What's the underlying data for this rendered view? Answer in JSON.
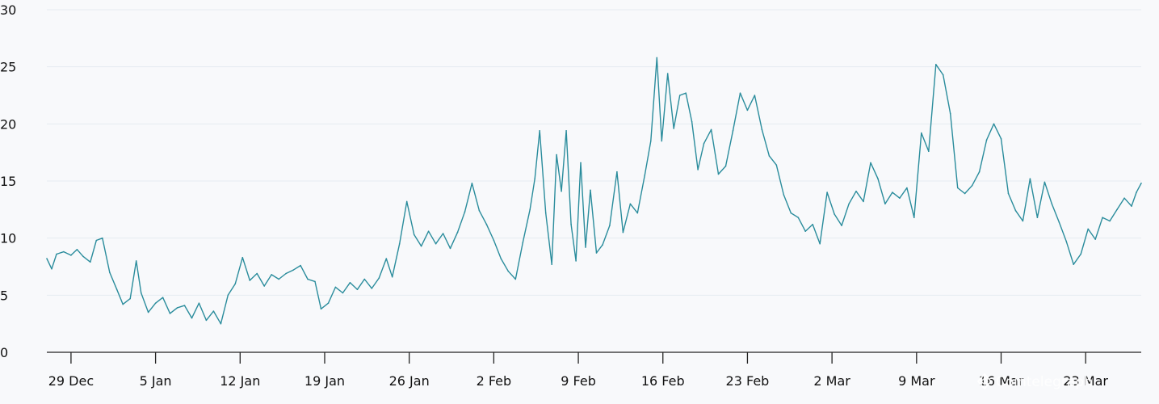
{
  "chart_data": {
    "type": "line",
    "ylim": [
      0,
      30
    ],
    "yticks": [
      "0",
      "5",
      "10",
      "15",
      "20",
      "25",
      "30"
    ],
    "ytick_values": [
      0,
      5,
      10,
      15,
      20,
      25,
      30
    ],
    "x_tick_labels": [
      "29 Dec",
      "5 Jan",
      "12 Jan",
      "19 Jan",
      "26 Jan",
      "2 Feb",
      "9 Feb",
      "16 Feb",
      "23 Feb",
      "2 Mar",
      "9 Mar",
      "16 Mar",
      "23 Mar"
    ],
    "x_tick_days": [
      0,
      7,
      14,
      21,
      28,
      35,
      42,
      49,
      56,
      63,
      70,
      77,
      84
    ],
    "x_range_days": [
      -2,
      88.6
    ],
    "grid": true,
    "line_color": "#2a8c9c",
    "watermark": "Cointelegraph",
    "series": [
      {
        "values": [
          [
            -2.0,
            8.2
          ],
          [
            -1.6,
            7.3
          ],
          [
            -1.2,
            8.6
          ],
          [
            -0.6,
            8.8
          ],
          [
            0.0,
            8.5
          ],
          [
            0.5,
            9.0
          ],
          [
            1.0,
            8.4
          ],
          [
            1.6,
            7.9
          ],
          [
            2.1,
            9.8
          ],
          [
            2.6,
            10.0
          ],
          [
            3.2,
            7.0
          ],
          [
            3.8,
            5.5
          ],
          [
            4.3,
            4.2
          ],
          [
            4.9,
            4.7
          ],
          [
            5.4,
            8.0
          ],
          [
            5.8,
            5.2
          ],
          [
            6.4,
            3.5
          ],
          [
            7.0,
            4.3
          ],
          [
            7.6,
            4.8
          ],
          [
            8.2,
            3.4
          ],
          [
            8.8,
            3.9
          ],
          [
            9.4,
            4.1
          ],
          [
            10.0,
            3.0
          ],
          [
            10.6,
            4.3
          ],
          [
            11.2,
            2.8
          ],
          [
            11.8,
            3.6
          ],
          [
            12.4,
            2.5
          ],
          [
            13.0,
            5.0
          ],
          [
            13.6,
            6.0
          ],
          [
            14.2,
            8.3
          ],
          [
            14.8,
            6.3
          ],
          [
            15.4,
            6.9
          ],
          [
            16.0,
            5.8
          ],
          [
            16.6,
            6.8
          ],
          [
            17.2,
            6.4
          ],
          [
            17.8,
            6.9
          ],
          [
            18.4,
            7.2
          ],
          [
            19.0,
            7.6
          ],
          [
            19.6,
            6.4
          ],
          [
            20.2,
            6.2
          ],
          [
            20.7,
            3.8
          ],
          [
            21.3,
            4.3
          ],
          [
            21.9,
            5.7
          ],
          [
            22.5,
            5.2
          ],
          [
            23.1,
            6.1
          ],
          [
            23.7,
            5.5
          ],
          [
            24.3,
            6.4
          ],
          [
            24.9,
            5.6
          ],
          [
            25.5,
            6.5
          ],
          [
            26.1,
            8.2
          ],
          [
            26.6,
            6.6
          ],
          [
            27.2,
            9.5
          ],
          [
            27.8,
            13.2
          ],
          [
            28.4,
            10.3
          ],
          [
            29.0,
            9.3
          ],
          [
            29.6,
            10.6
          ],
          [
            30.2,
            9.5
          ],
          [
            30.8,
            10.4
          ],
          [
            31.4,
            9.1
          ],
          [
            32.0,
            10.5
          ],
          [
            32.6,
            12.3
          ],
          [
            33.2,
            14.8
          ],
          [
            33.8,
            12.4
          ],
          [
            34.4,
            11.2
          ],
          [
            35.0,
            9.8
          ],
          [
            35.6,
            8.2
          ],
          [
            36.2,
            7.1
          ],
          [
            36.8,
            6.4
          ],
          [
            37.4,
            9.6
          ],
          [
            38.0,
            12.5
          ],
          [
            38.4,
            15.2
          ],
          [
            38.8,
            19.4
          ],
          [
            39.3,
            12.2
          ],
          [
            39.8,
            7.7
          ],
          [
            40.2,
            17.3
          ],
          [
            40.6,
            14.1
          ],
          [
            41.0,
            19.4
          ],
          [
            41.4,
            11.2
          ],
          [
            41.8,
            8.0
          ],
          [
            42.2,
            16.6
          ],
          [
            42.6,
            9.2
          ],
          [
            43.0,
            14.2
          ],
          [
            43.5,
            8.7
          ],
          [
            44.0,
            9.4
          ],
          [
            44.6,
            11.1
          ],
          [
            45.2,
            15.8
          ],
          [
            45.7,
            10.5
          ],
          [
            46.3,
            13.0
          ],
          [
            46.9,
            12.2
          ],
          [
            47.5,
            15.5
          ],
          [
            48.0,
            18.5
          ],
          [
            48.5,
            25.8
          ],
          [
            48.9,
            18.5
          ],
          [
            49.4,
            24.4
          ],
          [
            49.9,
            19.6
          ],
          [
            50.4,
            22.5
          ],
          [
            50.9,
            22.7
          ],
          [
            51.4,
            20.2
          ],
          [
            51.9,
            16.0
          ],
          [
            52.4,
            18.3
          ],
          [
            53.0,
            19.5
          ],
          [
            53.6,
            15.6
          ],
          [
            54.2,
            16.3
          ],
          [
            54.8,
            19.4
          ],
          [
            55.4,
            22.7
          ],
          [
            56.0,
            21.2
          ],
          [
            56.6,
            22.5
          ],
          [
            57.2,
            19.5
          ],
          [
            57.8,
            17.2
          ],
          [
            58.4,
            16.4
          ],
          [
            59.0,
            13.8
          ],
          [
            59.6,
            12.2
          ],
          [
            60.2,
            11.8
          ],
          [
            60.8,
            10.6
          ],
          [
            61.4,
            11.2
          ],
          [
            62.0,
            9.5
          ],
          [
            62.6,
            14.0
          ],
          [
            63.2,
            12.1
          ],
          [
            63.8,
            11.1
          ],
          [
            64.4,
            13.0
          ],
          [
            65.0,
            14.1
          ],
          [
            65.6,
            13.2
          ],
          [
            66.2,
            16.6
          ],
          [
            66.8,
            15.2
          ],
          [
            67.4,
            13.0
          ],
          [
            68.0,
            14.0
          ],
          [
            68.6,
            13.5
          ],
          [
            69.2,
            14.4
          ],
          [
            69.8,
            11.8
          ],
          [
            70.4,
            19.2
          ],
          [
            71.0,
            17.6
          ],
          [
            71.6,
            25.2
          ],
          [
            72.2,
            24.3
          ],
          [
            72.8,
            20.9
          ],
          [
            73.4,
            14.4
          ],
          [
            74.0,
            13.9
          ],
          [
            74.6,
            14.6
          ],
          [
            75.2,
            15.8
          ],
          [
            75.8,
            18.6
          ],
          [
            76.4,
            20.0
          ],
          [
            77.0,
            18.7
          ],
          [
            77.6,
            13.9
          ],
          [
            78.2,
            12.4
          ],
          [
            78.8,
            11.5
          ],
          [
            79.4,
            15.2
          ],
          [
            80.0,
            11.8
          ],
          [
            80.6,
            14.9
          ],
          [
            81.2,
            13.0
          ],
          [
            81.8,
            11.4
          ],
          [
            82.4,
            9.7
          ],
          [
            83.0,
            7.7
          ],
          [
            83.6,
            8.6
          ],
          [
            84.2,
            10.8
          ],
          [
            84.8,
            9.9
          ],
          [
            85.4,
            11.8
          ],
          [
            86.0,
            11.5
          ],
          [
            86.6,
            12.5
          ],
          [
            87.2,
            13.5
          ],
          [
            87.8,
            12.8
          ],
          [
            88.2,
            14.0
          ],
          [
            88.6,
            14.8
          ]
        ]
      }
    ]
  }
}
